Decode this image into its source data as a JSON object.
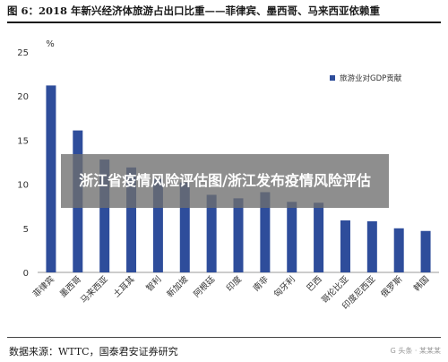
{
  "page": {
    "title": "图 6：2018 年新兴经济体旅游占出口比重——菲律宾、墨西哥、马来西亚依赖重",
    "source": "数据来源：WTTC，国泰君安证券研究",
    "watermark": "G 头条 · 某某某",
    "overlay_text": "浙江省疫情风险评估图/浙江发布疫情风险评估"
  },
  "chart_data": {
    "type": "bar",
    "title": "",
    "unit_label": "%",
    "xlabel": "",
    "ylabel": "",
    "ylim": [
      0,
      25
    ],
    "yticks": [
      0,
      5,
      10,
      15,
      20,
      25
    ],
    "grid": false,
    "legend_position": "top-right",
    "categories": [
      "菲律宾",
      "墨西哥",
      "马来西亚",
      "土耳其",
      "智利",
      "新加坡",
      "阿根廷",
      "印度",
      "南非",
      "匈牙利",
      "巴西",
      "哥伦比亚",
      "印度尼西亚",
      "俄罗斯",
      "韩国"
    ],
    "series": [
      {
        "name": "旅游业对GDP贡献",
        "color": "#2e4d9b",
        "values": [
          21.2,
          16.1,
          12.8,
          11.9,
          10.6,
          10.2,
          8.8,
          8.4,
          9.1,
          8.0,
          7.9,
          5.9,
          5.8,
          5.0,
          4.7
        ]
      }
    ]
  }
}
